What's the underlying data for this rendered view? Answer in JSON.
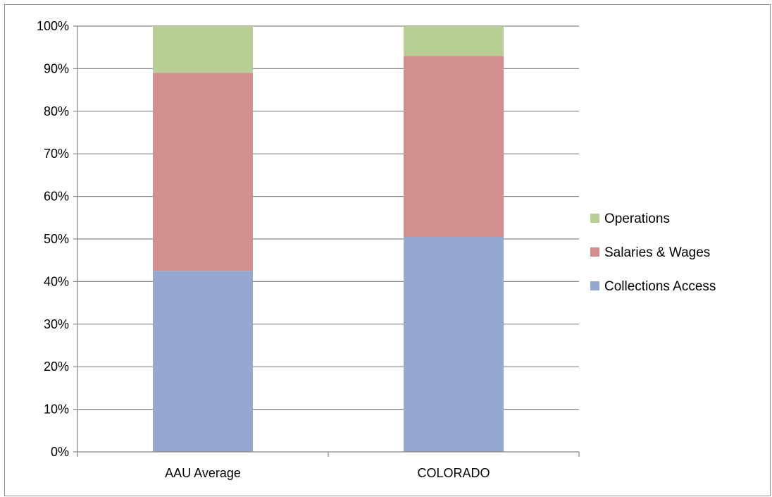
{
  "chart_data": {
    "type": "bar",
    "stacked": true,
    "percent": true,
    "categories": [
      "AAU Average",
      "COLORADO"
    ],
    "series": [
      {
        "name": "Collections Access",
        "values": [
          42.5,
          50.5
        ],
        "color": "#95A9D0"
      },
      {
        "name": "Salaries & Wages",
        "values": [
          46.5,
          42.5
        ],
        "color": "#D28F8E"
      },
      {
        "name": "Operations",
        "values": [
          11.0,
          7.0
        ],
        "color": "#B8CE94"
      }
    ],
    "yticks": [
      "0%",
      "10%",
      "20%",
      "30%",
      "40%",
      "50%",
      "60%",
      "70%",
      "80%",
      "90%",
      "100%"
    ],
    "ylim": [
      0,
      100
    ],
    "grid": true,
    "legend_position": "right",
    "legend_order": [
      "Operations",
      "Salaries & Wages",
      "Collections Access"
    ],
    "gridline_color": "#868686"
  }
}
